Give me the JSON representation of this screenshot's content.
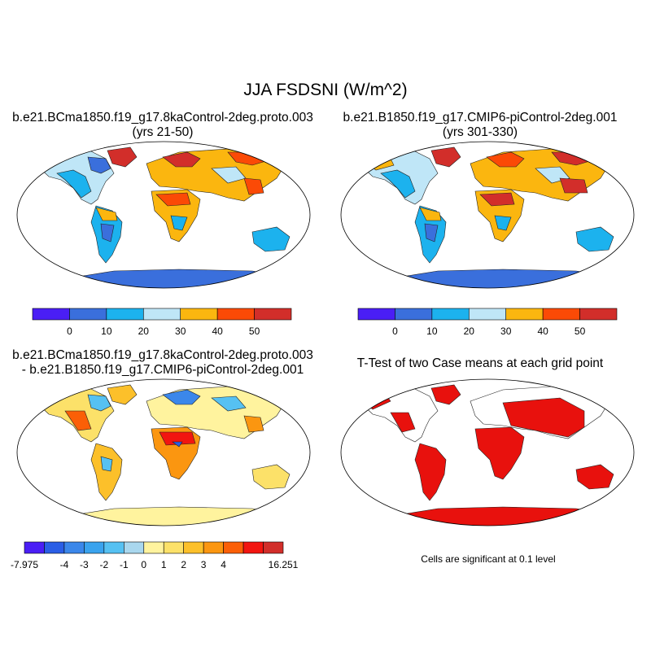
{
  "figure_title": "JJA FSDSNI (W/m^2)",
  "panels": {
    "top_left": {
      "title_line1": "b.e21.BCma1850.f19_g17.8kaControl-2deg.proto.003",
      "title_line2": "(yrs 21-50)"
    },
    "top_right": {
      "title_line1": "b.e21.B1850.f19_g17.CMIP6-piControl-2deg.001",
      "title_line2": "(yrs 301-330)"
    },
    "bottom_left": {
      "title_line1": "b.e21.BCma1850.f19_g17.8kaControl-2deg.proto.003",
      "title_line2": "- b.e21.B1850.f19_g17.CMIP6-piControl-2deg.001"
    },
    "bottom_right": {
      "title_line1": "T-Test of two Case means at each grid point",
      "note": "Cells are significant at 0.1 level"
    }
  },
  "colorbar_abs": {
    "colors": [
      "#4a1ef5",
      "#3a6fdc",
      "#1cb2ee",
      "#bfe6f7",
      "#fbb60f",
      "#fb4a06",
      "#d22e2a"
    ],
    "labels": [
      "0",
      "10",
      "20",
      "30",
      "40",
      "50"
    ]
  },
  "colorbar_diff": {
    "colors": [
      "#4a1ef5",
      "#2a5ee6",
      "#3b87ea",
      "#3aa3ee",
      "#56c1f2",
      "#a9d7ee",
      "#fff39e",
      "#fce169",
      "#fcc02a",
      "#fb9610",
      "#fb5f07",
      "#f21510",
      "#d22e2a"
    ],
    "labels": [
      "-7.975",
      "-4",
      "-3",
      "-2",
      "-1",
      "0",
      "1",
      "2",
      "3",
      "4",
      "16.251"
    ]
  },
  "significance_color": "#e8110d",
  "ocean_color": "#ffffff"
}
